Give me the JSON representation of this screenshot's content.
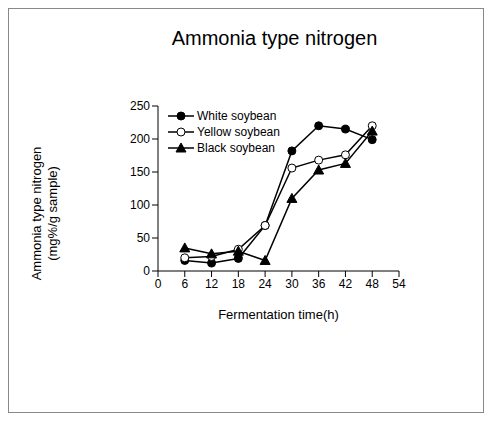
{
  "chart_data": {
    "type": "line",
    "title": "Ammonia type nitrogen",
    "xlabel": "Fermentation time(h)",
    "ylabel": "Ammonia type nitrogen\n(mg%/g sample)",
    "x": [
      6,
      12,
      18,
      24,
      30,
      36,
      42,
      48
    ],
    "series": [
      {
        "name": "White soybean",
        "color": "#000000",
        "marker": "circle",
        "values": [
          16,
          12,
          19,
          69,
          182,
          220,
          215,
          199
        ]
      },
      {
        "name": "Yellow soybean",
        "color": "#000000",
        "marker": "circle_open",
        "values": [
          20,
          22,
          33,
          69,
          156,
          168,
          176,
          220
        ]
      },
      {
        "name": "Black soybean",
        "color": "#000000",
        "marker": "triangle",
        "values": [
          35,
          26,
          30,
          16,
          110,
          153,
          163,
          212
        ]
      }
    ],
    "xlim": [
      0,
      54
    ],
    "xticks": [
      0,
      6,
      12,
      18,
      24,
      30,
      36,
      42,
      48,
      54
    ],
    "ylim": [
      0,
      250
    ],
    "yticks": [
      0,
      50,
      100,
      150,
      200,
      250
    ],
    "grid": false,
    "legend": "upper left"
  }
}
